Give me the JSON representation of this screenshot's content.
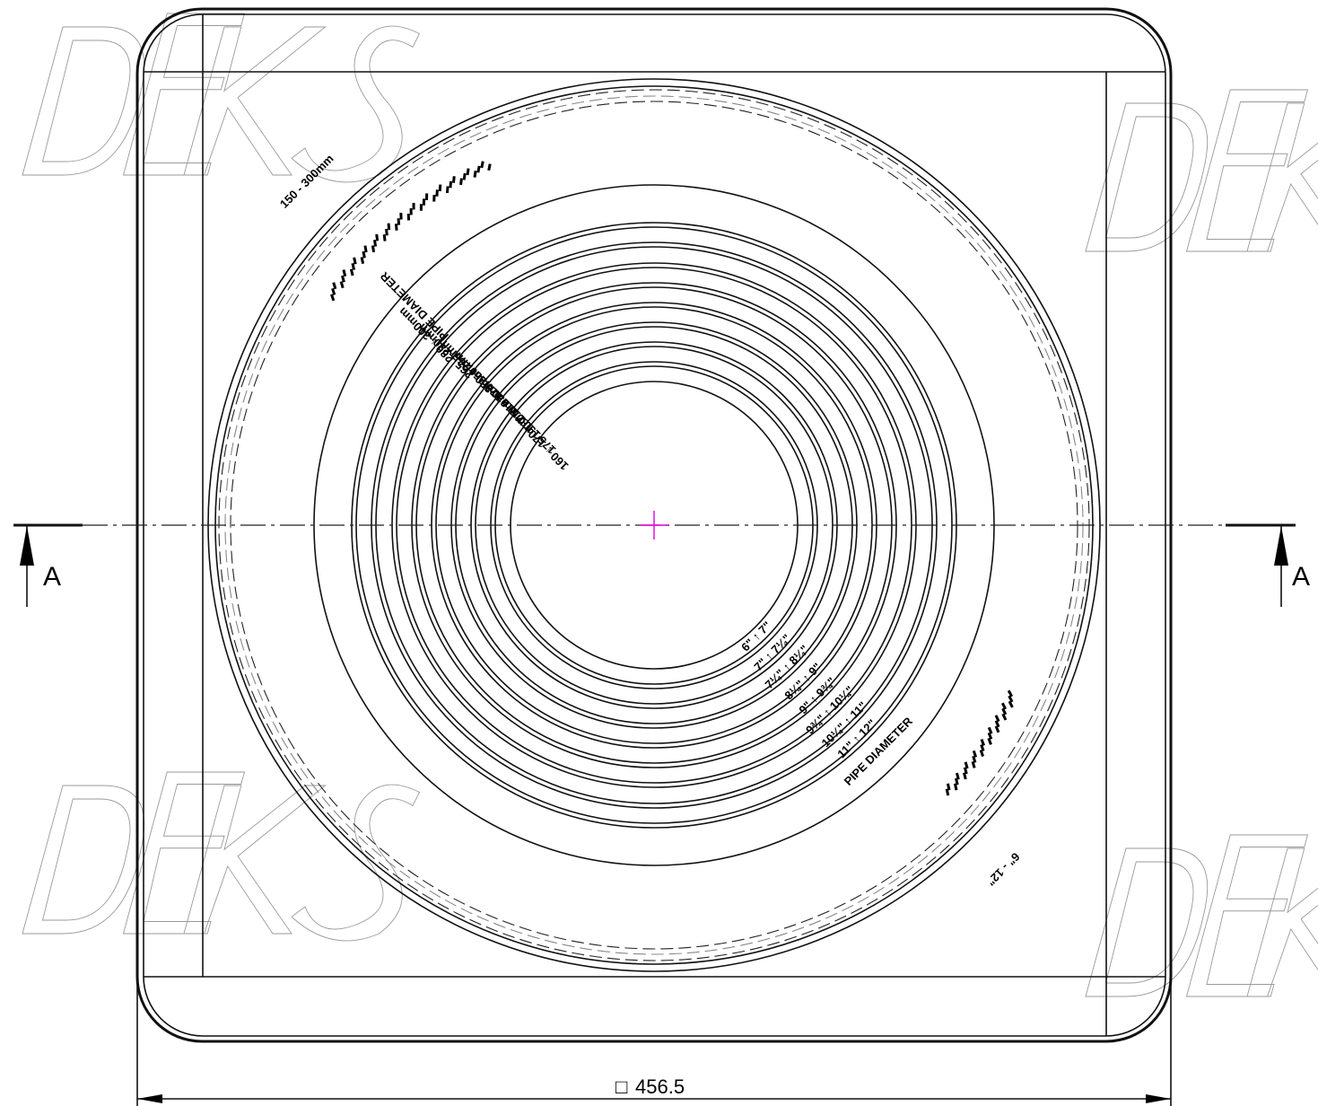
{
  "section_marker": {
    "letter": "A"
  },
  "dimension": {
    "symbol": "□",
    "value": "456.5"
  },
  "outer_range_mm": "150 - 300mm",
  "outer_range_in": "6\" - 12\"",
  "pipe_diameter_label": "PIPE DIAMETER",
  "mm_ranges": [
    "160 ↓ 170mm",
    "175 ↓ 180mm",
    "190 ↓ 210mm",
    "210 ↓ 220mm",
    "230 ↓ 250mm",
    "250 ↓ 265mm",
    "265 ↓ 280mm",
    "280 ↓ 300mm"
  ],
  "in_ranges": [
    "6\" ↑ 7\"",
    "7\" ↑ 7¼\"",
    "7¼\" ↑ 8¼\"",
    "8¼\" ↑ 9\"",
    "9\" ↑ 9¾\"",
    "9¾\" ↑ 10¼\"",
    "10¼\" ↑ 11\"",
    "11\" ↑ 12\""
  ],
  "watermark": "DEKS",
  "colors": {
    "center_mark": "#e000e0",
    "line": "#111111",
    "watermark": "#9a9a9a"
  }
}
